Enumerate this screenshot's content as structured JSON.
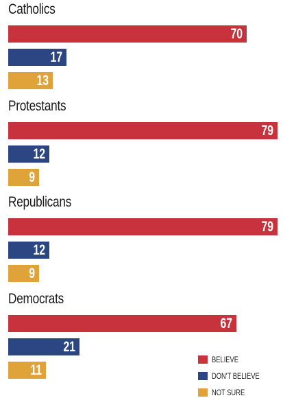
{
  "chart_data": {
    "type": "bar",
    "orientation": "horizontal",
    "categories": [
      "Catholics",
      "Protestants",
      "Republicans",
      "Democrats"
    ],
    "series": [
      {
        "name": "BELIEVE",
        "color": "#c8323c",
        "values": [
          70,
          79,
          79,
          67
        ]
      },
      {
        "name": "DON'T BELIEVE",
        "color": "#2b4683",
        "values": [
          17,
          12,
          12,
          21
        ]
      },
      {
        "name": "NOT SURE",
        "color": "#e0a33a",
        "values": [
          13,
          9,
          9,
          11
        ]
      }
    ],
    "xlim": [
      0,
      79
    ],
    "grid": false,
    "legend_position": "bottom-right",
    "data_labels": "inside-end"
  }
}
